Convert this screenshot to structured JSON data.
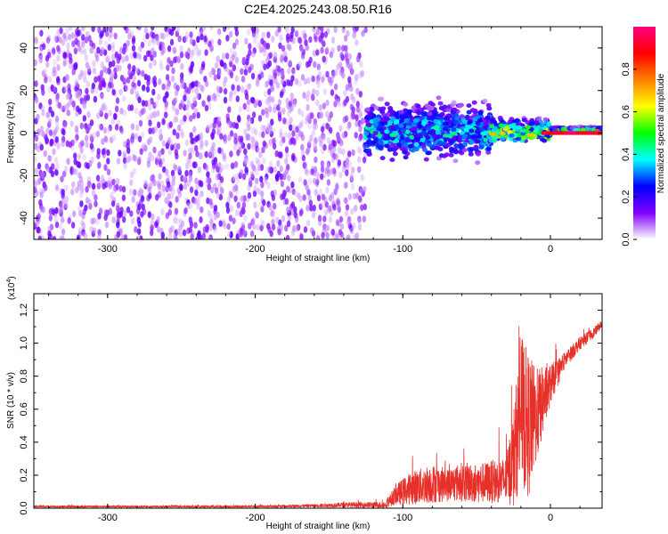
{
  "title": "C2E4.2025.243.08.50.R16",
  "chart_data": [
    {
      "type": "heatmap",
      "name": "spectrogram",
      "xlabel": "Height of straight line (km)",
      "ylabel": "Frequency (Hz)",
      "xlim": [
        -350,
        35
      ],
      "ylim": [
        -50,
        50
      ],
      "xticks": [
        -300,
        -200,
        -100,
        0
      ],
      "yticks": [
        -40,
        -20,
        0,
        20,
        40
      ],
      "colorbar": {
        "label": "Normalized spectral amplitude",
        "range": [
          0.0,
          1.0
        ],
        "ticks": [
          "0.0",
          "0.2",
          "0.4",
          "0.6",
          "0.8"
        ],
        "colors": [
          "#ffffff",
          "#8000ff",
          "#0000ff",
          "#00ffff",
          "#00ff00",
          "#ffff00",
          "#ff8000",
          "#ff0000",
          "#ff0080"
        ]
      },
      "regions": [
        {
          "x_range": [
            -350,
            -170
          ],
          "freq_spread": 50,
          "amplitude": 0.1,
          "description": "noise"
        },
        {
          "x_range": [
            -170,
            -125
          ],
          "freq_spread": 50,
          "amplitude": 0.08,
          "description": "noise"
        },
        {
          "x_range": [
            -125,
            -40
          ],
          "freq_spread": 10,
          "amplitude": 0.35
        },
        {
          "x_range": [
            -40,
            0
          ],
          "freq_spread": 4,
          "amplitude": 0.55
        },
        {
          "x_range": [
            0,
            35
          ],
          "freq_spread": 1,
          "amplitude": 0.9
        }
      ]
    },
    {
      "type": "line",
      "name": "snr",
      "xlabel": "Height of straight line (km)",
      "ylabel": "SNR (10 * v/v)",
      "y_scale_label": "(x10",
      "y_scale_exp": "4",
      "xlim": [
        -350,
        35
      ],
      "ylim": [
        0,
        1.3
      ],
      "xticks": [
        -300,
        -200,
        -100,
        0
      ],
      "yticks": [
        "0.0",
        "0.2",
        "0.4",
        "0.6",
        "0.8",
        "1.0",
        "1.2"
      ],
      "color": "#e8302a",
      "series_envelope": {
        "x": [
          -350,
          -300,
          -200,
          -160,
          -140,
          -112,
          -105,
          -95,
          -80,
          -70,
          -60,
          -50,
          -40,
          -30,
          -25,
          -20,
          -15,
          -10,
          0,
          10,
          20,
          30,
          35
        ],
        "y_mean": [
          0.01,
          0.01,
          0.01,
          0.015,
          0.02,
          0.02,
          0.08,
          0.12,
          0.15,
          0.14,
          0.16,
          0.15,
          0.16,
          0.17,
          0.3,
          0.6,
          0.5,
          0.55,
          0.75,
          0.9,
          1.0,
          1.07,
          1.12
        ],
        "y_noise": [
          0.006,
          0.006,
          0.006,
          0.01,
          0.015,
          0.02,
          0.06,
          0.1,
          0.12,
          0.1,
          0.12,
          0.12,
          0.13,
          0.14,
          0.3,
          0.45,
          0.45,
          0.3,
          0.12,
          0.05,
          0.04,
          0.03,
          0.02
        ]
      }
    }
  ]
}
